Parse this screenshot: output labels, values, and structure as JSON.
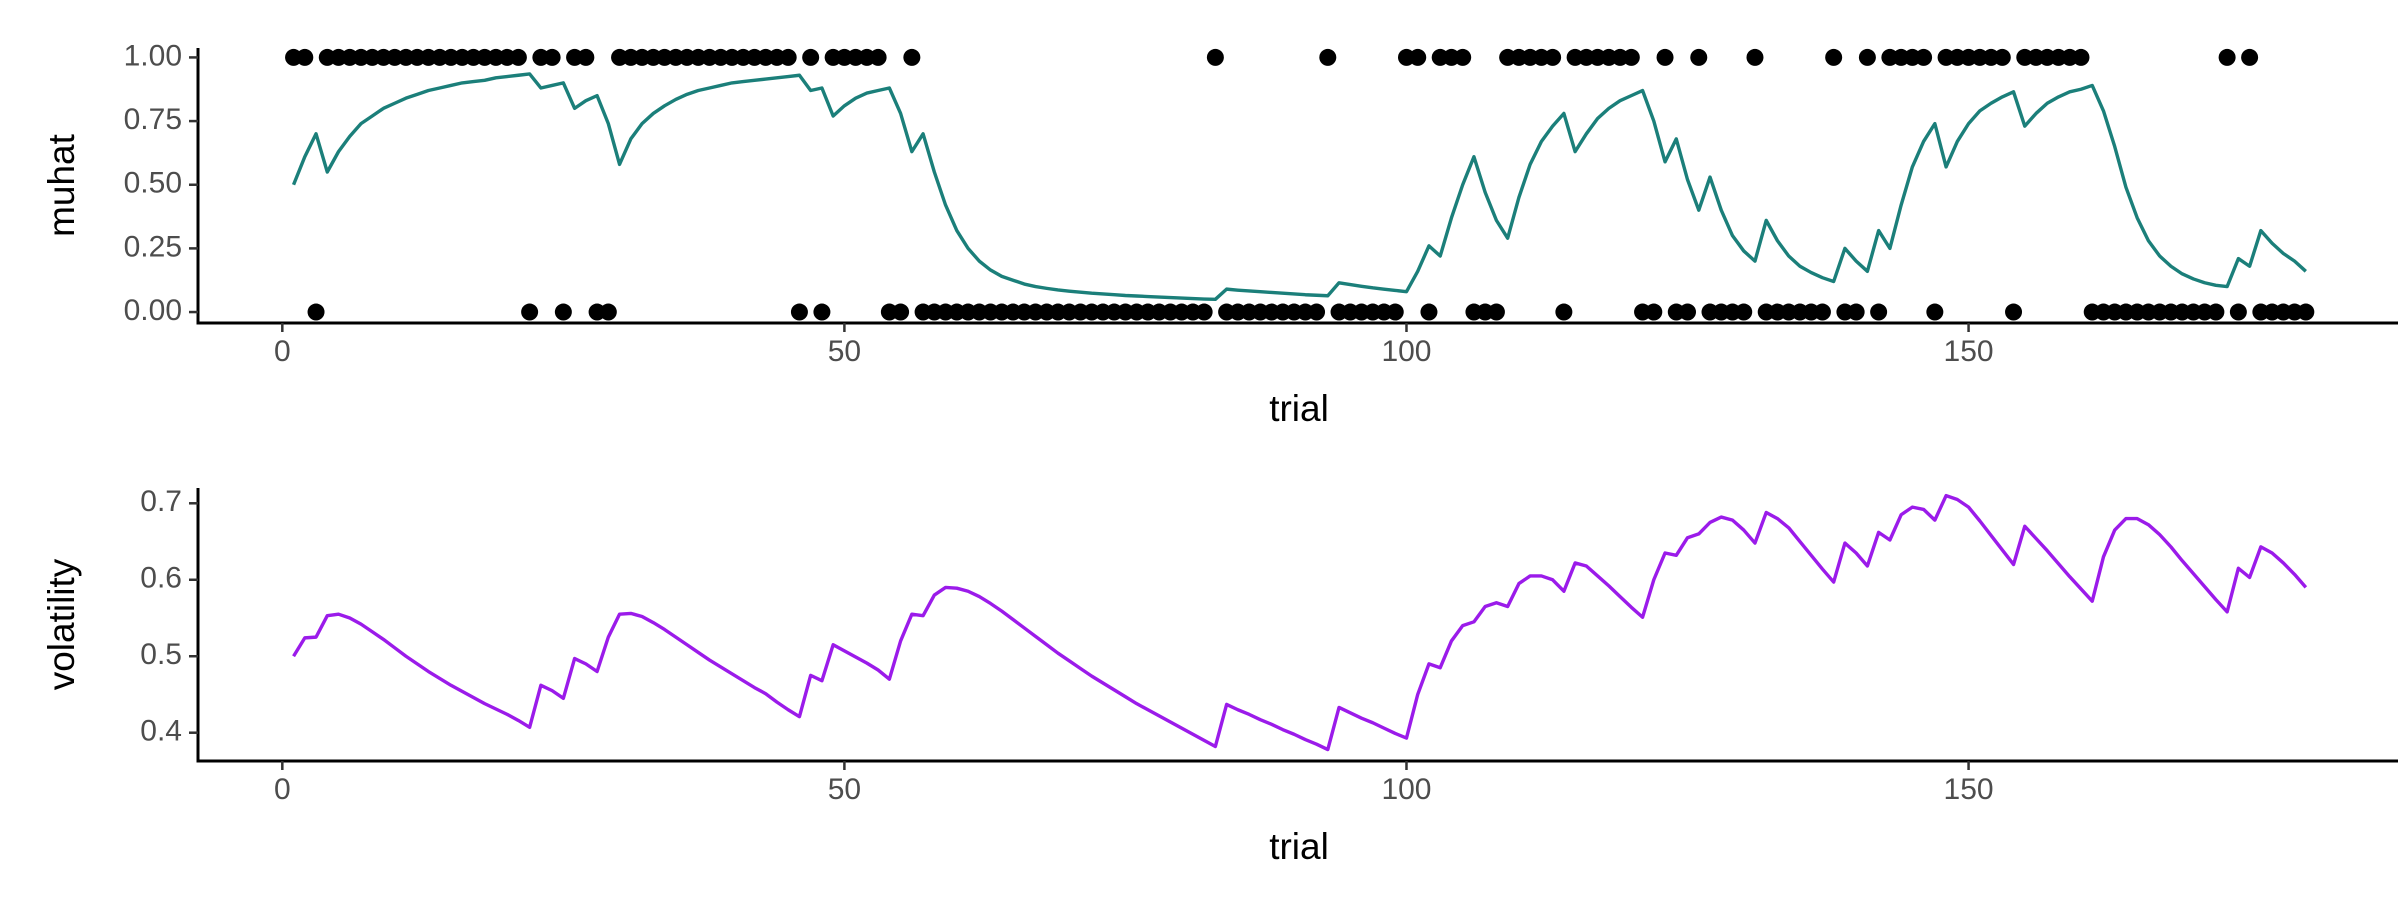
{
  "chart_data": [
    {
      "type": "line",
      "xlabel": "trial",
      "ylabel": "muhat",
      "x": [
        1,
        2,
        3,
        4,
        5,
        6,
        7,
        8,
        9,
        10,
        11,
        12,
        13,
        14,
        15,
        16,
        17,
        18,
        19,
        20,
        21,
        22,
        23,
        24,
        25,
        26,
        27,
        28,
        29,
        30,
        31,
        32,
        33,
        34,
        35,
        36,
        37,
        38,
        39,
        40,
        41,
        42,
        43,
        44,
        45,
        46,
        47,
        48,
        49,
        50,
        51,
        52,
        53,
        54,
        55,
        56,
        57,
        58,
        59,
        60,
        61,
        62,
        63,
        64,
        65,
        66,
        67,
        68,
        69,
        70,
        71,
        72,
        73,
        74,
        75,
        76,
        77,
        78,
        79,
        80,
        81,
        82,
        83,
        84,
        85,
        86,
        87,
        88,
        89,
        90,
        91,
        92,
        93,
        94,
        95,
        96,
        97,
        98,
        99,
        100,
        101,
        102,
        103,
        104,
        105,
        106,
        107,
        108,
        109,
        110,
        111,
        112,
        113,
        114,
        115,
        116,
        117,
        118,
        119,
        120,
        121,
        122,
        123,
        124,
        125,
        126,
        127,
        128,
        129,
        130,
        131,
        132,
        133,
        134,
        135,
        136,
        137,
        138,
        139,
        140,
        141,
        142,
        143,
        144,
        145,
        146,
        147,
        148,
        149,
        150,
        151,
        152,
        153,
        154,
        155,
        156,
        157,
        158,
        159,
        160,
        161,
        162,
        163,
        164,
        165,
        166,
        167,
        168,
        169,
        170,
        171,
        172,
        173,
        174,
        175,
        176,
        177,
        178,
        179,
        180
      ],
      "series": [
        {
          "type": "scatter",
          "color": "#000000",
          "values": [
            1,
            1,
            0,
            1,
            1,
            1,
            1,
            1,
            1,
            1,
            1,
            1,
            1,
            1,
            1,
            1,
            1,
            1,
            1,
            1,
            1,
            0,
            1,
            1,
            0,
            1,
            1,
            0,
            0,
            1,
            1,
            1,
            1,
            1,
            1,
            1,
            1,
            1,
            1,
            1,
            1,
            1,
            1,
            1,
            1,
            0,
            1,
            0,
            1,
            1,
            1,
            1,
            1,
            0,
            0,
            1,
            0,
            0,
            0,
            0,
            0,
            0,
            0,
            0,
            0,
            0,
            0,
            0,
            0,
            0,
            0,
            0,
            0,
            0,
            0,
            0,
            0,
            0,
            0,
            0,
            0,
            0,
            1,
            0,
            0,
            0,
            0,
            0,
            0,
            0,
            0,
            0,
            1,
            0,
            0,
            0,
            0,
            0,
            0,
            1,
            1,
            0,
            1,
            1,
            1,
            0,
            0,
            0,
            1,
            1,
            1,
            1,
            1,
            0,
            1,
            1,
            1,
            1,
            1,
            1,
            0,
            0,
            1,
            0,
            0,
            1,
            0,
            0,
            0,
            0,
            1,
            0,
            0,
            0,
            0,
            0,
            0,
            1,
            0,
            0,
            1,
            0,
            1,
            1,
            1,
            1,
            0,
            1,
            1,
            1,
            1,
            1,
            1,
            0,
            1,
            1,
            1,
            1,
            1,
            1,
            0,
            0,
            0,
            0,
            0,
            0,
            0,
            0,
            0,
            0,
            0,
            0,
            1,
            0,
            1,
            0,
            0,
            0,
            0,
            0
          ]
        },
        {
          "type": "line",
          "color": "#1b7f7a",
          "values": [
            0.5,
            0.61,
            0.7,
            0.55,
            0.63,
            0.69,
            0.74,
            0.77,
            0.8,
            0.82,
            0.84,
            0.855,
            0.87,
            0.88,
            0.89,
            0.9,
            0.905,
            0.91,
            0.92,
            0.925,
            0.93,
            0.935,
            0.88,
            0.89,
            0.9,
            0.8,
            0.83,
            0.85,
            0.74,
            0.58,
            0.68,
            0.74,
            0.78,
            0.81,
            0.835,
            0.855,
            0.87,
            0.88,
            0.89,
            0.9,
            0.905,
            0.91,
            0.915,
            0.92,
            0.925,
            0.93,
            0.87,
            0.88,
            0.77,
            0.81,
            0.84,
            0.86,
            0.87,
            0.88,
            0.78,
            0.63,
            0.7,
            0.55,
            0.42,
            0.32,
            0.25,
            0.2,
            0.165,
            0.14,
            0.125,
            0.11,
            0.1,
            0.093,
            0.087,
            0.082,
            0.078,
            0.074,
            0.071,
            0.068,
            0.065,
            0.063,
            0.061,
            0.059,
            0.057,
            0.055,
            0.053,
            0.051,
            0.05,
            0.09,
            0.086,
            0.083,
            0.08,
            0.077,
            0.074,
            0.071,
            0.068,
            0.066,
            0.064,
            0.115,
            0.108,
            0.101,
            0.095,
            0.09,
            0.085,
            0.08,
            0.16,
            0.26,
            0.22,
            0.37,
            0.5,
            0.61,
            0.47,
            0.36,
            0.29,
            0.45,
            0.58,
            0.67,
            0.73,
            0.78,
            0.63,
            0.7,
            0.76,
            0.8,
            0.83,
            0.85,
            0.87,
            0.75,
            0.59,
            0.68,
            0.52,
            0.4,
            0.53,
            0.4,
            0.3,
            0.24,
            0.2,
            0.36,
            0.28,
            0.22,
            0.18,
            0.155,
            0.135,
            0.12,
            0.25,
            0.2,
            0.16,
            0.32,
            0.25,
            0.42,
            0.57,
            0.67,
            0.74,
            0.57,
            0.67,
            0.74,
            0.79,
            0.82,
            0.845,
            0.865,
            0.73,
            0.78,
            0.82,
            0.845,
            0.865,
            0.875,
            0.89,
            0.79,
            0.65,
            0.49,
            0.37,
            0.28,
            0.22,
            0.18,
            0.15,
            0.13,
            0.115,
            0.105,
            0.1,
            0.21,
            0.18,
            0.32,
            0.27,
            0.23,
            0.2,
            0.16
          ]
        }
      ],
      "xlim": [
        -7.5,
        188.2
      ],
      "xticks": [
        0,
        50,
        100,
        150
      ],
      "ylim": [
        -0.043,
        1.037
      ],
      "yticks": [
        {
          "value": 0,
          "label": "0.00"
        },
        0.25,
        {
          "value": 0.5,
          "label": "0.50"
        },
        0.75,
        {
          "value": 1,
          "label": "1.00"
        }
      ]
    },
    {
      "type": "line",
      "xlabel": "trial",
      "ylabel": "volatility",
      "x": [
        1,
        2,
        3,
        4,
        5,
        6,
        7,
        8,
        9,
        10,
        11,
        12,
        13,
        14,
        15,
        16,
        17,
        18,
        19,
        20,
        21,
        22,
        23,
        24,
        25,
        26,
        27,
        28,
        29,
        30,
        31,
        32,
        33,
        34,
        35,
        36,
        37,
        38,
        39,
        40,
        41,
        42,
        43,
        44,
        45,
        46,
        47,
        48,
        49,
        50,
        51,
        52,
        53,
        54,
        55,
        56,
        57,
        58,
        59,
        60,
        61,
        62,
        63,
        64,
        65,
        66,
        67,
        68,
        69,
        70,
        71,
        72,
        73,
        74,
        75,
        76,
        77,
        78,
        79,
        80,
        81,
        82,
        83,
        84,
        85,
        86,
        87,
        88,
        89,
        90,
        91,
        92,
        93,
        94,
        95,
        96,
        97,
        98,
        99,
        100,
        101,
        102,
        103,
        104,
        105,
        106,
        107,
        108,
        109,
        110,
        111,
        112,
        113,
        114,
        115,
        116,
        117,
        118,
        119,
        120,
        121,
        122,
        123,
        124,
        125,
        126,
        127,
        128,
        129,
        130,
        131,
        132,
        133,
        134,
        135,
        136,
        137,
        138,
        139,
        140,
        141,
        142,
        143,
        144,
        145,
        146,
        147,
        148,
        149,
        150,
        151,
        152,
        153,
        154,
        155,
        156,
        157,
        158,
        159,
        160,
        161,
        162,
        163,
        164,
        165,
        166,
        167,
        168,
        169,
        170,
        171,
        172,
        173,
        174,
        175,
        176,
        177,
        178,
        179,
        180
      ],
      "series": [
        {
          "type": "line",
          "color": "#9b1bea",
          "values": [
            0.5,
            0.524,
            0.525,
            0.553,
            0.555,
            0.55,
            0.542,
            0.532,
            0.522,
            0.511,
            0.5,
            0.49,
            0.48,
            0.471,
            0.462,
            0.454,
            0.446,
            0.438,
            0.431,
            0.424,
            0.416,
            0.407,
            0.462,
            0.455,
            0.445,
            0.497,
            0.49,
            0.48,
            0.525,
            0.555,
            0.556,
            0.552,
            0.544,
            0.535,
            0.525,
            0.515,
            0.505,
            0.495,
            0.486,
            0.477,
            0.468,
            0.459,
            0.451,
            0.44,
            0.43,
            0.421,
            0.475,
            0.468,
            0.515,
            0.507,
            0.499,
            0.491,
            0.482,
            0.47,
            0.52,
            0.555,
            0.553,
            0.58,
            0.59,
            0.589,
            0.585,
            0.578,
            0.569,
            0.559,
            0.548,
            0.537,
            0.526,
            0.515,
            0.504,
            0.494,
            0.484,
            0.474,
            0.465,
            0.456,
            0.447,
            0.438,
            0.43,
            0.422,
            0.414,
            0.406,
            0.398,
            0.39,
            0.382,
            0.437,
            0.43,
            0.424,
            0.417,
            0.411,
            0.404,
            0.398,
            0.391,
            0.385,
            0.378,
            0.433,
            0.426,
            0.419,
            0.413,
            0.406,
            0.399,
            0.393,
            0.45,
            0.49,
            0.485,
            0.52,
            0.54,
            0.545,
            0.565,
            0.57,
            0.565,
            0.595,
            0.605,
            0.605,
            0.6,
            0.585,
            0.622,
            0.618,
            0.605,
            0.592,
            0.578,
            0.564,
            0.551,
            0.6,
            0.635,
            0.632,
            0.655,
            0.66,
            0.675,
            0.682,
            0.678,
            0.665,
            0.648,
            0.688,
            0.68,
            0.668,
            0.65,
            0.632,
            0.614,
            0.597,
            0.648,
            0.635,
            0.618,
            0.662,
            0.652,
            0.685,
            0.695,
            0.692,
            0.678,
            0.71,
            0.705,
            0.695,
            0.677,
            0.658,
            0.639,
            0.62,
            0.67,
            0.654,
            0.638,
            0.621,
            0.604,
            0.588,
            0.572,
            0.63,
            0.665,
            0.68,
            0.68,
            0.672,
            0.659,
            0.643,
            0.625,
            0.608,
            0.591,
            0.574,
            0.558,
            0.615,
            0.603,
            0.643,
            0.635,
            0.622,
            0.607,
            0.59
          ]
        }
      ],
      "xlim": [
        -7.5,
        188.2
      ],
      "xticks": [
        0,
        50,
        100,
        150
      ],
      "ylim": [
        0.363,
        0.72
      ],
      "yticks": [
        0.4,
        0.5,
        0.6,
        0.7
      ]
    }
  ]
}
